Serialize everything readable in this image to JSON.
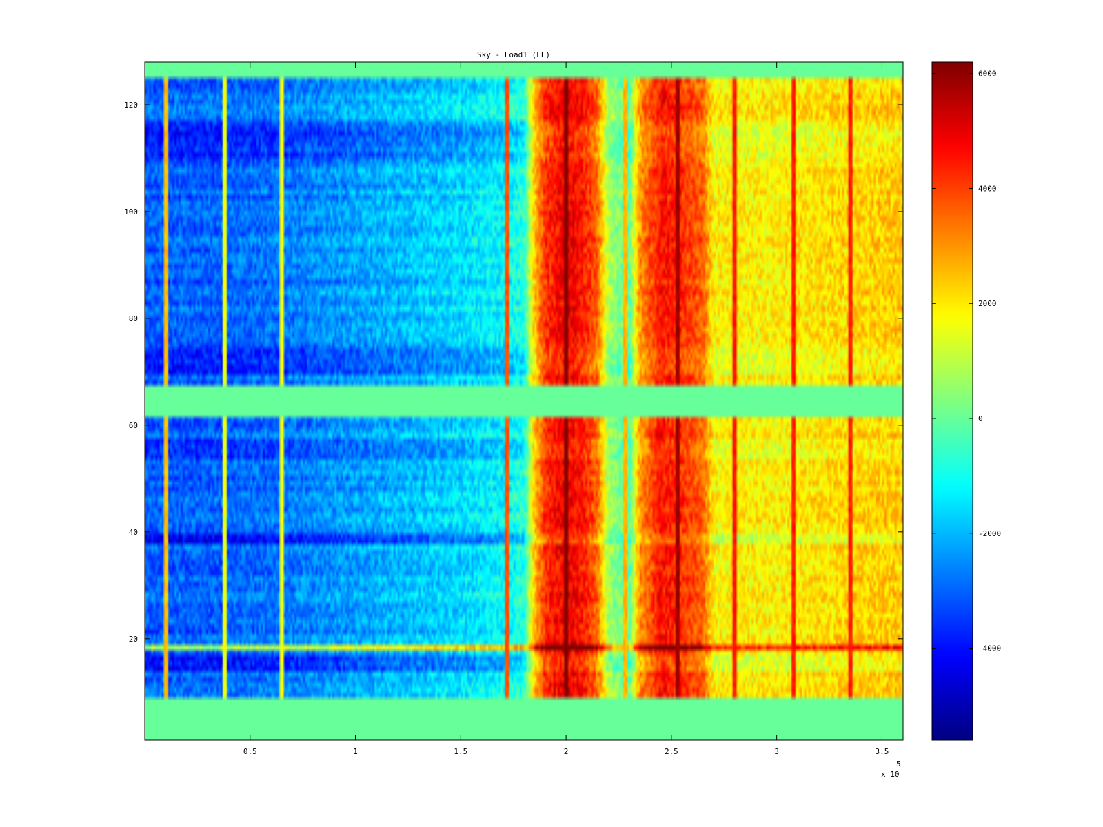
{
  "chart_data": {
    "type": "heatmap",
    "title": "Sky - Load1 (LL)",
    "xlabel": "",
    "ylabel": "",
    "x_exponent_label": "x 10",
    "x_exponent_power": "5",
    "xlim": [
      0,
      3.6
    ],
    "ylim": [
      1,
      128
    ],
    "x_ticks": [
      0.5,
      1,
      1.5,
      2,
      2.5,
      3,
      3.5
    ],
    "x_tick_labels": [
      "0.5",
      "1",
      "1.5",
      "2",
      "2.5",
      "3",
      "3.5"
    ],
    "y_ticks": [
      20,
      40,
      60,
      80,
      100,
      120
    ],
    "y_tick_labels": [
      "20",
      "40",
      "60",
      "80",
      "100",
      "120"
    ],
    "colorbar": {
      "colormap": "jet",
      "range": [
        -5600,
        6200
      ],
      "ticks": [
        -4000,
        -2000,
        0,
        2000,
        4000,
        6000
      ],
      "tick_labels": [
        "-4000",
        "-2000",
        "0",
        "2000",
        "4000",
        "6000"
      ]
    },
    "blank_rows_value": 0,
    "blank_row_ranges": [
      [
        1,
        8
      ],
      [
        62,
        67
      ],
      [
        126,
        128
      ]
    ],
    "column_profile": {
      "description": "approximate mean value vs x (in units of 1e5)",
      "x": [
        0.0,
        0.3,
        0.6,
        0.9,
        1.2,
        1.5,
        1.7,
        1.8,
        1.85,
        1.9,
        2.0,
        2.1,
        2.15,
        2.2,
        2.3,
        2.35,
        2.45,
        2.55,
        2.65,
        2.7,
        3.0,
        3.3,
        3.6
      ],
      "values": [
        -3000,
        -3000,
        -2800,
        -2400,
        -2000,
        -1600,
        -1200,
        -800,
        2500,
        4200,
        5000,
        4300,
        3500,
        800,
        -200,
        3000,
        4600,
        4200,
        3600,
        1900,
        1900,
        2200,
        2400
      ]
    },
    "row_offsets": [
      {
        "rows": [
          70,
          74
        ],
        "value": -900
      },
      {
        "rows": [
          110,
          117
        ],
        "value": -700
      },
      {
        "rows": [
          38,
          39
        ],
        "value": -1300
      },
      {
        "rows": [
          14,
          16
        ],
        "value": -900
      },
      {
        "rows": [
          18,
          18
        ],
        "value": 3500
      },
      {
        "rows": [
          54,
          57
        ],
        "value": -500
      }
    ],
    "vertical_stripes": [
      {
        "x": 0.1,
        "value": 2500
      },
      {
        "x": 0.38,
        "value": 1600
      },
      {
        "x": 0.65,
        "value": 1600
      },
      {
        "x": 1.72,
        "value": 3800
      },
      {
        "x": 2.0,
        "value": 6200
      },
      {
        "x": 2.28,
        "value": 2600
      },
      {
        "x": 2.53,
        "value": 5800
      },
      {
        "x": 2.8,
        "value": 4400
      },
      {
        "x": 3.08,
        "value": 4400
      },
      {
        "x": 3.35,
        "value": 4400
      }
    ],
    "colors": {
      "axis": "#000000",
      "background": "#ffffff"
    }
  }
}
